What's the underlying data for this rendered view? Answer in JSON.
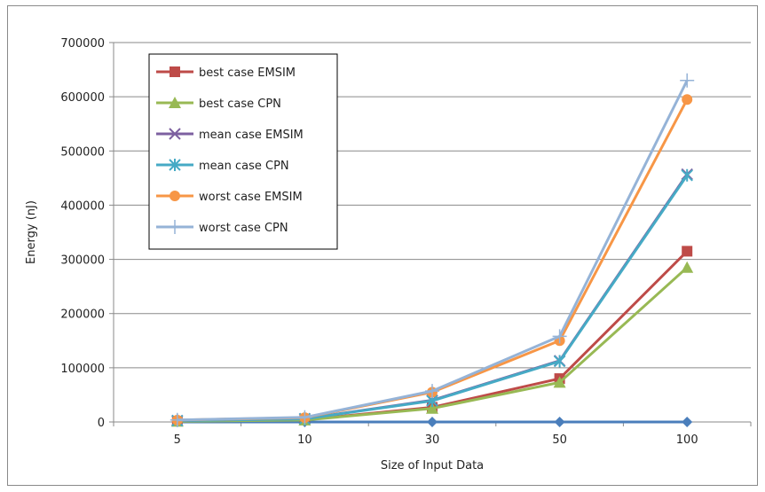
{
  "chart_data": {
    "type": "line",
    "title": "",
    "xlabel": "Size of Input Data",
    "ylabel": "Energy (nJ)",
    "categories": [
      "5",
      "10",
      "30",
      "50",
      "100"
    ],
    "ylim": [
      0,
      700000
    ],
    "yticks": [
      "0",
      "100000",
      "200000",
      "300000",
      "400000",
      "500000",
      "600000",
      "700000"
    ],
    "grid": "horizontal",
    "legend_position": "top-left",
    "series": [
      {
        "name": "",
        "values": [
          0,
          0,
          0,
          0,
          0
        ],
        "color": "#4a7ebb",
        "marker": "diamond",
        "in_legend": false
      },
      {
        "name": "best case EMSIM",
        "values": [
          1500,
          4000,
          27000,
          80000,
          315000
        ],
        "color": "#be4b48",
        "marker": "square",
        "in_legend": true
      },
      {
        "name": "best case CPN",
        "values": [
          1200,
          3500,
          25000,
          73000,
          285000
        ],
        "color": "#98b954",
        "marker": "triangle",
        "in_legend": true
      },
      {
        "name": "mean case EMSIM",
        "values": [
          2500,
          6000,
          40000,
          113000,
          457000
        ],
        "color": "#7d60a0",
        "marker": "x",
        "in_legend": true
      },
      {
        "name": "mean case CPN",
        "values": [
          2400,
          5800,
          39000,
          112000,
          455000
        ],
        "color": "#46aac5",
        "marker": "asterisk",
        "in_legend": true
      },
      {
        "name": "worst case EMSIM",
        "values": [
          3500,
          8000,
          55000,
          150000,
          595000
        ],
        "color": "#f79646",
        "marker": "circle",
        "in_legend": true
      },
      {
        "name": "worst case CPN",
        "values": [
          3700,
          8500,
          57000,
          158000,
          630000
        ],
        "color": "#95b3d7",
        "marker": "plus",
        "in_legend": true
      }
    ]
  }
}
